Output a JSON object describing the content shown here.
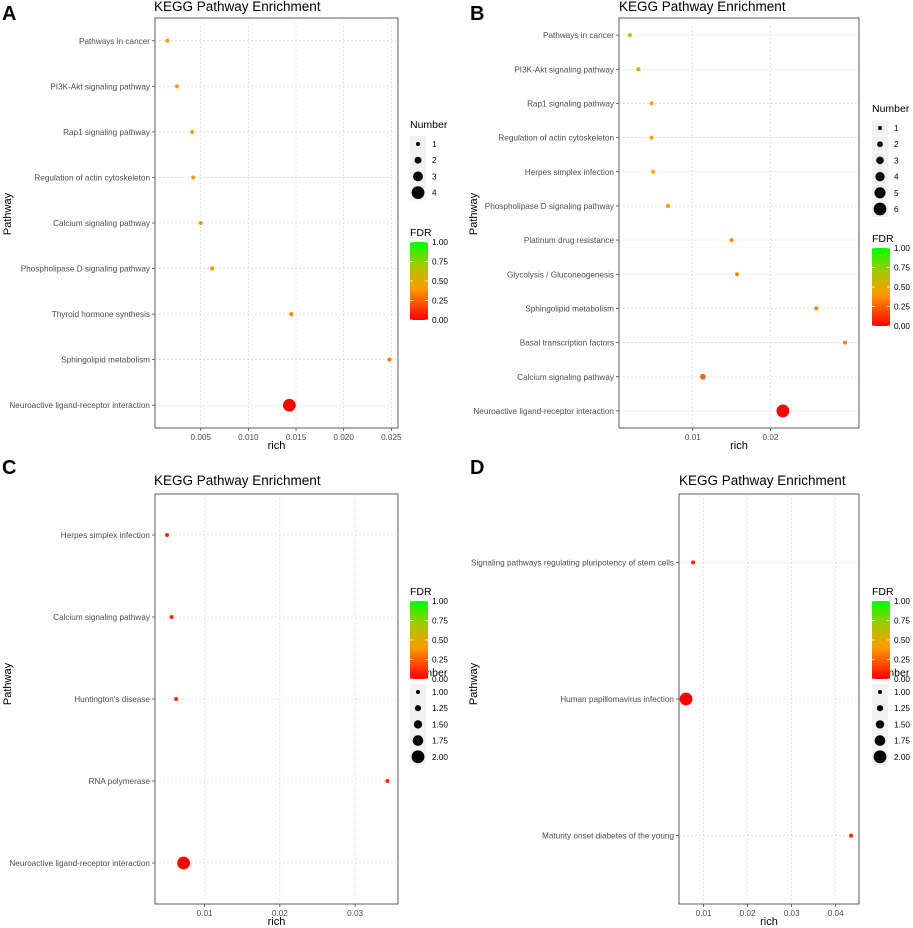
{
  "figure": {
    "panels": [
      {
        "letter": "A",
        "title": "KEGG Pathway Enrichment"
      },
      {
        "letter": "B",
        "title": "KEGG Pathway Enrichment"
      },
      {
        "letter": "C",
        "title": "KEGG Pathway Enrichment"
      },
      {
        "letter": "D",
        "title": "KEGG Pathway Enrichment"
      }
    ]
  },
  "chart_data": [
    {
      "panel": "A",
      "type": "scatter",
      "title": "KEGG Pathway Enrichment",
      "xlabel": "rich",
      "ylabel": "Pathway",
      "xlim": [
        0.0002,
        0.0257
      ],
      "xticks": [
        0.005,
        0.01,
        0.015,
        0.02,
        0.025
      ],
      "xtick_labels": [
        "0.005",
        "0.010",
        "0.015",
        "0.020",
        "0.025"
      ],
      "grid": true,
      "pathways": [
        {
          "name": "Pathways in cancer",
          "rich": 0.0015,
          "number": 1,
          "fdr": 0.42
        },
        {
          "name": "PI3K-Akt signaling pathway",
          "rich": 0.0025,
          "number": 1,
          "fdr": 0.42
        },
        {
          "name": "Rap1 signaling pathway",
          "rich": 0.0041,
          "number": 1,
          "fdr": 0.4
        },
        {
          "name": "Regulation of actin cytoskeleton",
          "rich": 0.0042,
          "number": 1,
          "fdr": 0.4
        },
        {
          "name": "Calcium signaling pathway",
          "rich": 0.005,
          "number": 1,
          "fdr": 0.38
        },
        {
          "name": "Phospholipase D signaling pathway",
          "rich": 0.0062,
          "number": 1,
          "fdr": 0.37
        },
        {
          "name": "Thyroid hormone synthesis",
          "rich": 0.0145,
          "number": 1,
          "fdr": 0.33
        },
        {
          "name": "Sphingolipid metabolism",
          "rich": 0.0248,
          "number": 1,
          "fdr": 0.31
        },
        {
          "name": "Neuroactive ligand-receptor interaction",
          "rich": 0.0143,
          "number": 4,
          "fdr": 0.0
        }
      ],
      "legend_number": {
        "title": "Number",
        "values": [
          1,
          2,
          3,
          4
        ],
        "labels": [
          "1",
          "2",
          "3",
          "4"
        ]
      },
      "legend_fdr": {
        "title": "FDR",
        "ticks": [
          "1.00",
          "0.75",
          "0.50",
          "0.25",
          "0.00"
        ]
      },
      "legend_order": [
        "number",
        "fdr"
      ]
    },
    {
      "panel": "B",
      "type": "scatter",
      "title": "KEGG Pathway Enrichment",
      "xlabel": "rich",
      "ylabel": "Pathway",
      "xlim": [
        0.0005,
        0.0314
      ],
      "xticks": [
        0.01,
        0.02
      ],
      "xtick_labels": [
        "0.01",
        "0.02"
      ],
      "grid": true,
      "pathways": [
        {
          "name": "Pathways in cancer",
          "rich": 0.0019,
          "number": 1,
          "fdr": 0.6
        },
        {
          "name": "PI3K-Akt signaling pathway",
          "rich": 0.003,
          "number": 1,
          "fdr": 0.5
        },
        {
          "name": "Rap1 signaling pathway",
          "rich": 0.0047,
          "number": 1,
          "fdr": 0.45
        },
        {
          "name": "Regulation of actin cytoskeleton",
          "rich": 0.0047,
          "number": 1,
          "fdr": 0.45
        },
        {
          "name": "Herpes simplex infection",
          "rich": 0.0049,
          "number": 1,
          "fdr": 0.45
        },
        {
          "name": "Phospholipase D signaling pathway",
          "rich": 0.0068,
          "number": 1,
          "fdr": 0.43
        },
        {
          "name": "Platinum drug resistance",
          "rich": 0.015,
          "number": 1,
          "fdr": 0.36
        },
        {
          "name": "Glycolysis / Gluconeogenesis",
          "rich": 0.0157,
          "number": 1,
          "fdr": 0.36
        },
        {
          "name": "Sphingolipid metabolism",
          "rich": 0.0259,
          "number": 1,
          "fdr": 0.34
        },
        {
          "name": "Basal transcription factors",
          "rich": 0.0296,
          "number": 1,
          "fdr": 0.33
        },
        {
          "name": "Calcium signaling pathway",
          "rich": 0.0113,
          "number": 2,
          "fdr": 0.25
        },
        {
          "name": "Neuroactive ligand-receptor interaction",
          "rich": 0.0216,
          "number": 6,
          "fdr": 0.0
        }
      ],
      "legend_number": {
        "title": "Number",
        "values": [
          1,
          2,
          3,
          4,
          5,
          6
        ],
        "labels": [
          "1",
          "2",
          "3",
          "4",
          "5",
          "6"
        ]
      },
      "legend_fdr": {
        "title": "FDR",
        "ticks": [
          "1.00",
          "0.75",
          "0.50",
          "0.25",
          "0.00"
        ]
      },
      "legend_order": [
        "number",
        "fdr"
      ]
    },
    {
      "panel": "C",
      "type": "scatter",
      "title": "KEGG Pathway Enrichment",
      "xlabel": "rich",
      "ylabel": "Pathway",
      "xlim": [
        0.0034,
        0.0357
      ],
      "xticks": [
        0.01,
        0.02,
        0.03
      ],
      "xtick_labels": [
        "0.01",
        "0.02",
        "0.03"
      ],
      "grid": true,
      "pathways": [
        {
          "name": "Herpes simplex infection",
          "rich": 0.005,
          "number": 1,
          "fdr": 0.1
        },
        {
          "name": "Calcium signaling pathway",
          "rich": 0.0056,
          "number": 1,
          "fdr": 0.1
        },
        {
          "name": "Huntington's disease",
          "rich": 0.0062,
          "number": 1,
          "fdr": 0.1
        },
        {
          "name": "RNA polymerase",
          "rich": 0.0343,
          "number": 1,
          "fdr": 0.1
        },
        {
          "name": "Neuroactive ligand-receptor interaction",
          "rich": 0.0072,
          "number": 2,
          "fdr": 0.0
        }
      ],
      "legend_number": {
        "title": "Number",
        "values": [
          1.0,
          1.25,
          1.5,
          1.75,
          2.0
        ],
        "labels": [
          "1.00",
          "1.25",
          "1.50",
          "1.75",
          "2.00"
        ]
      },
      "legend_fdr": {
        "title": "FDR",
        "ticks": [
          "1.00",
          "0.75",
          "0.50",
          "0.25",
          "0.00"
        ]
      },
      "legend_order": [
        "fdr",
        "number"
      ]
    },
    {
      "panel": "D",
      "type": "scatter",
      "title": "KEGG Pathway Enrichment",
      "xlabel": "rich",
      "ylabel": "Pathway",
      "xlim": [
        0.0044,
        0.0453
      ],
      "xticks": [
        0.01,
        0.02,
        0.03,
        0.04
      ],
      "xtick_labels": [
        "0.01",
        "0.02",
        "0.03",
        "0.04"
      ],
      "grid": true,
      "pathways": [
        {
          "name": "Signaling pathways regulating pluripotency of stem cells",
          "rich": 0.0076,
          "number": 1,
          "fdr": 0.08
        },
        {
          "name": "Human papillomavirus infection",
          "rich": 0.006,
          "number": 2,
          "fdr": 0.0
        },
        {
          "name": "Maturity onset diabetes of the young",
          "rich": 0.0435,
          "number": 1,
          "fdr": 0.08
        }
      ],
      "legend_number": {
        "title": "Number",
        "values": [
          1.0,
          1.25,
          1.5,
          1.75,
          2.0
        ],
        "labels": [
          "1.00",
          "1.25",
          "1.50",
          "1.75",
          "2.00"
        ]
      },
      "legend_fdr": {
        "title": "FDR",
        "ticks": [
          "1.00",
          "0.75",
          "0.50",
          "0.25",
          "0.00"
        ]
      },
      "legend_order": [
        "fdr",
        "number"
      ]
    }
  ]
}
